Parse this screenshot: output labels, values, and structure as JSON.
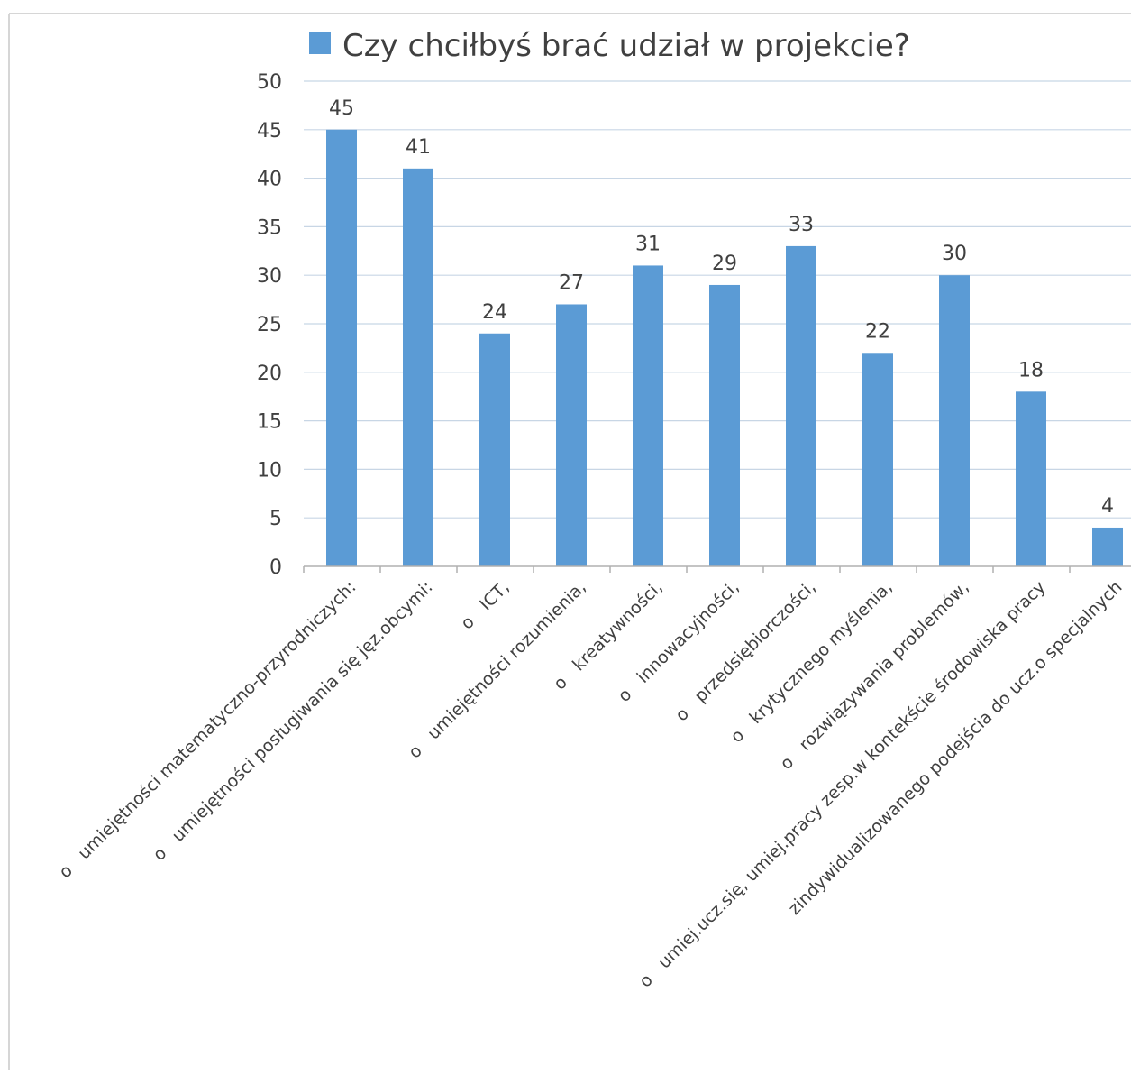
{
  "chart_data": {
    "type": "bar",
    "title": "",
    "legend": {
      "placement": "top",
      "entries": [
        "Czy chciłbyś brać udział w projekcie?"
      ]
    },
    "categories": [
      "o   umiejętności matematyczno-przyrodniczych:",
      "o   umiejętności posługiwania się jęz.obcymi:",
      "o   ICT,",
      "o   umiejętności rozumienia,",
      "o   kreatywności,",
      "o   innowacyjności,",
      "o   przedsiębiorczości,",
      "o   krytycznego myślenia,",
      "o   rozwiązywania problemów,",
      "o   umiej.ucz.się, umiej.pracy zesp.w kontekście środowiska pracy",
      "zindywidualizowanego podejścia do ucz.o specjalnych"
    ],
    "series": [
      {
        "name": "Czy chciłbyś brać udział w projekcie?",
        "values": [
          45,
          41,
          24,
          27,
          31,
          29,
          33,
          22,
          30,
          18,
          4
        ],
        "color": "#5b9bd5"
      }
    ],
    "data_labels": [
      "45",
      "41",
      "24",
      "27",
      "31",
      "29",
      "33",
      "22",
      "30",
      "18",
      "4"
    ],
    "y_ticks": [
      "0",
      "5",
      "10",
      "15",
      "20",
      "25",
      "30",
      "35",
      "40",
      "45",
      "50"
    ],
    "ylim": [
      0,
      50
    ],
    "xlabel": "",
    "ylabel": "",
    "grid": true,
    "colors": {
      "bar": "#5b9bd5",
      "gridline": "#c8d6e5",
      "axis": "#b0b0b0",
      "text": "#404040"
    }
  }
}
